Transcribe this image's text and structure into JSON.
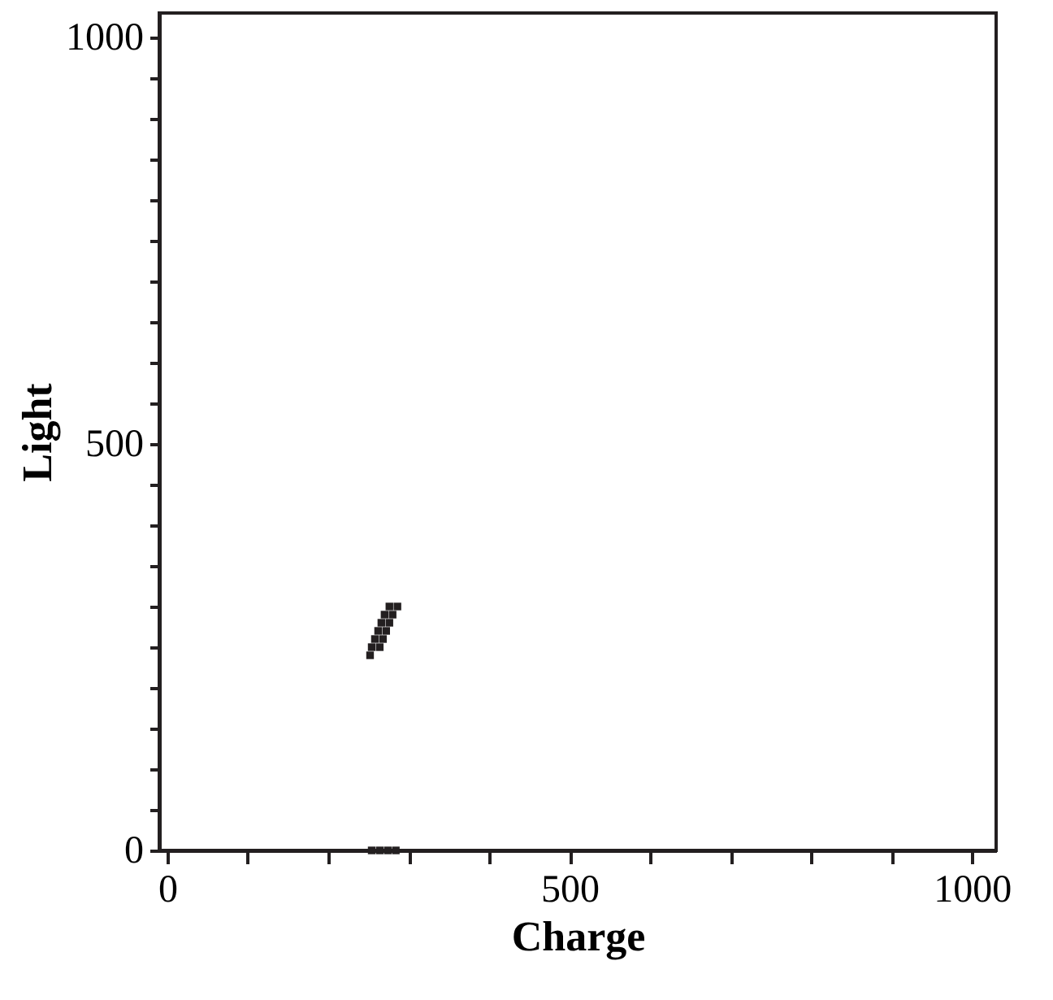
{
  "chart_data": {
    "type": "scatter",
    "xlabel": "Charge",
    "ylabel": "Light",
    "marker": "square",
    "grid": false,
    "xlim": [
      -10,
      1030
    ],
    "ylim": [
      0,
      1030
    ],
    "xticks": [
      0,
      {
        "value": 100,
        "label": null
      },
      {
        "value": 200,
        "label": null
      },
      {
        "value": 300,
        "label": null
      },
      {
        "value": 400,
        "label": null
      },
      500,
      {
        "value": 600,
        "label": null
      },
      {
        "value": 700,
        "label": null
      },
      {
        "value": 800,
        "label": null
      },
      {
        "value": 900,
        "label": null
      },
      1000
    ],
    "yticks": [
      0,
      {
        "value": 50,
        "label": null
      },
      {
        "value": 100,
        "label": null
      },
      {
        "value": 150,
        "label": null
      },
      {
        "value": 200,
        "label": null
      },
      {
        "value": 250,
        "label": null
      },
      {
        "value": 300,
        "label": null
      },
      {
        "value": 350,
        "label": null
      },
      {
        "value": 400,
        "label": null
      },
      {
        "value": 450,
        "label": null
      },
      500,
      {
        "value": 550,
        "label": null
      },
      {
        "value": 600,
        "label": null
      },
      {
        "value": 650,
        "label": null
      },
      {
        "value": 700,
        "label": null
      },
      {
        "value": 750,
        "label": null
      },
      {
        "value": 800,
        "label": null
      },
      {
        "value": 850,
        "label": null
      },
      {
        "value": 900,
        "label": null
      },
      {
        "value": 950,
        "label": null
      },
      1000
    ],
    "series": [
      {
        "color": "#231f20",
        "x": [
          252,
          254,
          264,
          258,
          268,
          262,
          272,
          266,
          276,
          270,
          280,
          276,
          286,
          254,
          264,
          274,
          284
        ],
        "values": [
          240,
          250,
          250,
          260,
          260,
          270,
          270,
          280,
          280,
          290,
          290,
          300,
          300,
          0,
          0,
          0,
          0
        ]
      }
    ]
  }
}
